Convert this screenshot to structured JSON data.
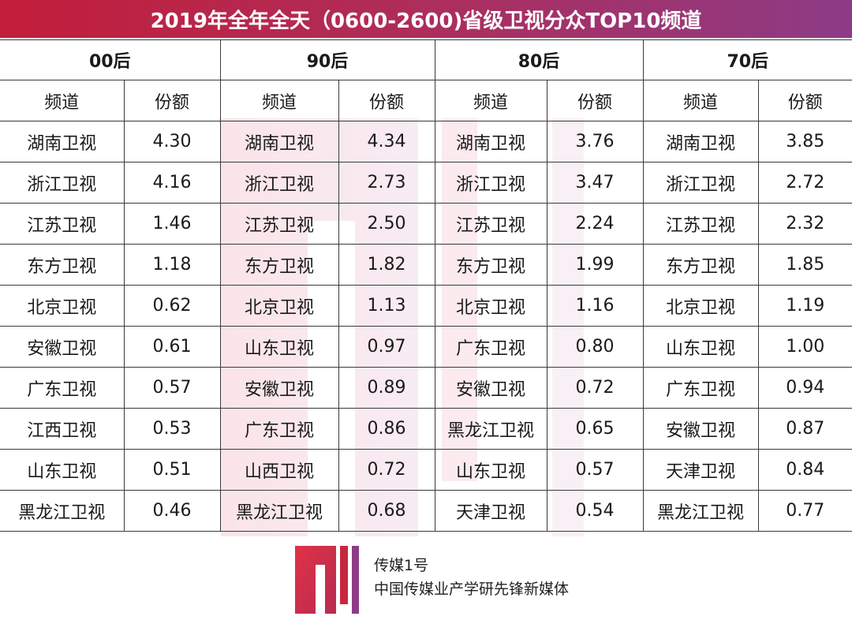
{
  "title": "2019年全年全天（0600-2600)省级卫视分众TOP10频道",
  "table": {
    "groups": [
      "00后",
      "90后",
      "80后",
      "70后"
    ],
    "col_channel": "频道",
    "col_share": "份额",
    "rows": [
      [
        [
          "湖南卫视",
          "4.30"
        ],
        [
          "湖南卫视",
          "4.34"
        ],
        [
          "湖南卫视",
          "3.76"
        ],
        [
          "湖南卫视",
          "3.85"
        ]
      ],
      [
        [
          "浙江卫视",
          "4.16"
        ],
        [
          "浙江卫视",
          "2.73"
        ],
        [
          "浙江卫视",
          "3.47"
        ],
        [
          "浙江卫视",
          "2.72"
        ]
      ],
      [
        [
          "江苏卫视",
          "1.46"
        ],
        [
          "江苏卫视",
          "2.50"
        ],
        [
          "江苏卫视",
          "2.24"
        ],
        [
          "江苏卫视",
          "2.32"
        ]
      ],
      [
        [
          "东方卫视",
          "1.18"
        ],
        [
          "东方卫视",
          "1.82"
        ],
        [
          "东方卫视",
          "1.99"
        ],
        [
          "东方卫视",
          "1.85"
        ]
      ],
      [
        [
          "北京卫视",
          "0.62"
        ],
        [
          "北京卫视",
          "1.13"
        ],
        [
          "北京卫视",
          "1.16"
        ],
        [
          "北京卫视",
          "1.19"
        ]
      ],
      [
        [
          "安徽卫视",
          "0.61"
        ],
        [
          "山东卫视",
          "0.97"
        ],
        [
          "广东卫视",
          "0.80"
        ],
        [
          "山东卫视",
          "1.00"
        ]
      ],
      [
        [
          "广东卫视",
          "0.57"
        ],
        [
          "安徽卫视",
          "0.89"
        ],
        [
          "安徽卫视",
          "0.72"
        ],
        [
          "广东卫视",
          "0.94"
        ]
      ],
      [
        [
          "江西卫视",
          "0.53"
        ],
        [
          "广东卫视",
          "0.86"
        ],
        [
          "黑龙江卫视",
          "0.65"
        ],
        [
          "安徽卫视",
          "0.87"
        ]
      ],
      [
        [
          "山东卫视",
          "0.51"
        ],
        [
          "山西卫视",
          "0.72"
        ],
        [
          "山东卫视",
          "0.57"
        ],
        [
          "天津卫视",
          "0.84"
        ]
      ],
      [
        [
          "黑龙江卫视",
          "0.46"
        ],
        [
          "黑龙江卫视",
          "0.68"
        ],
        [
          "天津卫视",
          "0.54"
        ],
        [
          "黑龙江卫视",
          "0.77"
        ]
      ]
    ]
  },
  "footer": {
    "brand": "传媒1号",
    "tagline": "中国传媒业产学研先锋新媒体"
  },
  "colors": {
    "header_start": "#c21e3a",
    "header_end": "#8d3b86",
    "logo_red": "#c8283f",
    "logo_purple": "#8d3b86"
  },
  "icons": {
    "watermark": "brand-1-logo-icon",
    "footer_logo": "brand-1-logo-icon"
  }
}
